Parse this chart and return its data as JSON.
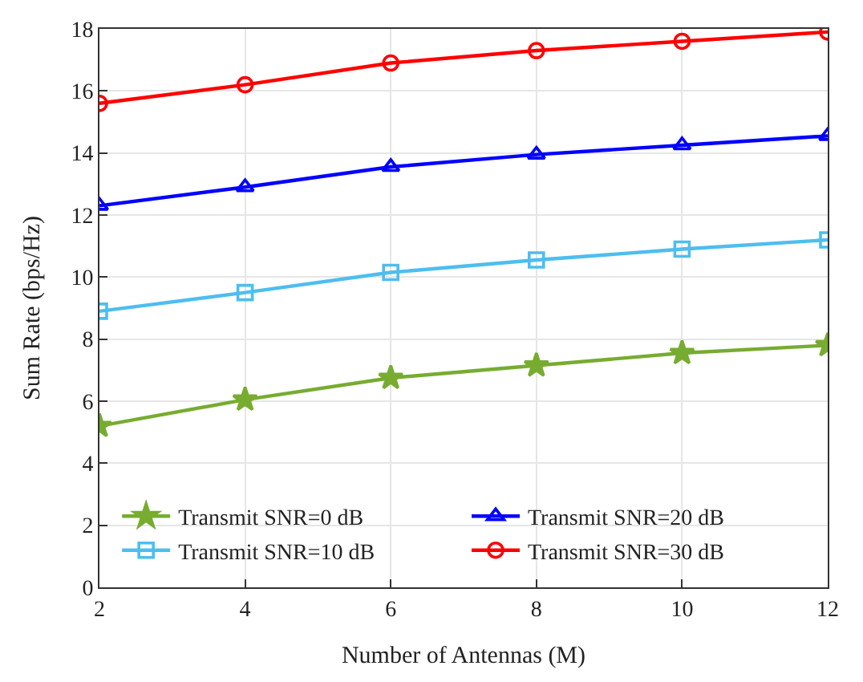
{
  "chart_data": {
    "type": "line",
    "xlabel": "Number of Antennas (M)",
    "ylabel": "Sum Rate (bps/Hz)",
    "x": [
      2,
      4,
      6,
      8,
      10,
      12
    ],
    "xlim": [
      2,
      12
    ],
    "xticks": [
      2,
      4,
      6,
      8,
      10,
      12
    ],
    "ylim": [
      0,
      18
    ],
    "yticks": [
      0,
      2,
      4,
      6,
      8,
      10,
      12,
      14,
      16,
      18
    ],
    "grid": true,
    "legend": "bottom",
    "series": [
      {
        "name": "Transmit SNR=0 dB",
        "color": "#77ac30",
        "marker": "star",
        "values": [
          5.2,
          6.05,
          6.75,
          7.15,
          7.55,
          7.8
        ]
      },
      {
        "name": "Transmit SNR=10 dB",
        "color": "#4dbeee",
        "marker": "square",
        "values": [
          8.9,
          9.5,
          10.15,
          10.55,
          10.9,
          11.2
        ]
      },
      {
        "name": "Transmit SNR=20 dB",
        "color": "#0000ff",
        "marker": "triangle",
        "values": [
          12.3,
          12.9,
          13.55,
          13.95,
          14.25,
          14.55
        ]
      },
      {
        "name": "Transmit SNR=30 dB",
        "color": "#ff0000",
        "marker": "circle",
        "values": [
          15.6,
          16.2,
          16.9,
          17.3,
          17.6,
          17.9
        ]
      }
    ]
  }
}
